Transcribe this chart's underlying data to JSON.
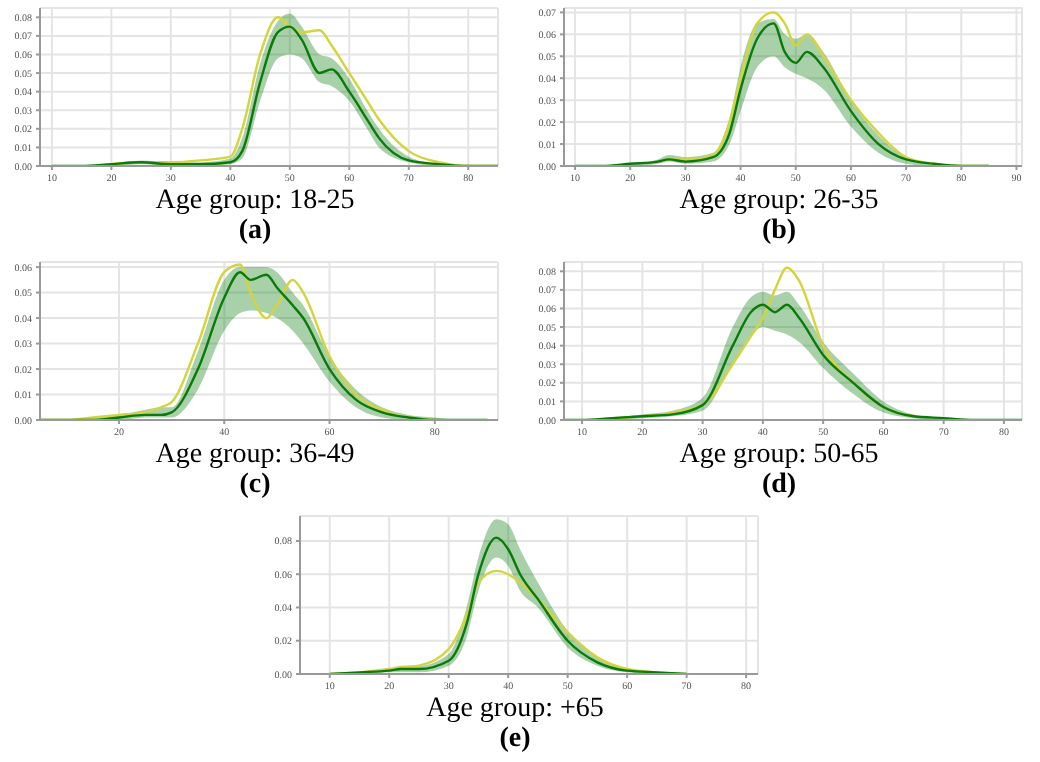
{
  "chart_data": [
    {
      "type": "line",
      "xlabel": "Age group: 18-25",
      "subtitle": "(a)",
      "grid": true,
      "legend": false,
      "marker": "none",
      "line_style": "solid",
      "xlim": [
        8,
        85
      ],
      "xticks": [
        10,
        20,
        30,
        40,
        50,
        60,
        70,
        80
      ],
      "ylim": [
        0,
        0.085
      ],
      "yticks": [
        {
          "value": 0,
          "label": "0.00"
        },
        {
          "value": 0.01,
          "label": "0.01"
        },
        {
          "value": 0.02,
          "label": "0.02"
        },
        {
          "value": 0.03,
          "label": "0.03"
        },
        {
          "value": 0.04,
          "label": "0.04"
        },
        {
          "value": 0.05,
          "label": "0.05"
        },
        {
          "value": 0.06,
          "label": "0.06"
        },
        {
          "value": 0.07,
          "label": "0.07"
        },
        {
          "value": 0.08,
          "label": "0.08"
        }
      ],
      "x": [
        10,
        15,
        20,
        25,
        30,
        35,
        40,
        42,
        45,
        48,
        50,
        52,
        55,
        57,
        60,
        63,
        65,
        70,
        75,
        80,
        85
      ],
      "series": [
        {
          "color": "#d4d43c",
          "values": [
            null,
            null,
            0.001,
            0.002,
            0.002,
            0.003,
            0.005,
            0.02,
            0.06,
            0.08,
            0.075,
            0.072,
            0.073,
            0.065,
            0.05,
            0.035,
            0.025,
            0.008,
            0.002,
            0,
            0
          ]
        },
        {
          "color": "#0a7a0a",
          "values": [
            0,
            0,
            0.001,
            0.002,
            0.001,
            0.001,
            0.002,
            0.008,
            0.045,
            0.072,
            0.075,
            0.068,
            0.05,
            0.052,
            0.04,
            0.025,
            0.015,
            0.003,
            0.001,
            0,
            0
          ],
          "lower": [
            0,
            0,
            0,
            0.001,
            0,
            0,
            0.001,
            0.004,
            0.035,
            0.058,
            0.06,
            0.058,
            0.045,
            0.043,
            0.035,
            0.02,
            0.01,
            0.002,
            0,
            0,
            0
          ],
          "upper": [
            0,
            0,
            0.001,
            0.003,
            0.002,
            0.002,
            0.004,
            0.015,
            0.055,
            0.078,
            0.082,
            0.075,
            0.06,
            0.058,
            0.047,
            0.03,
            0.02,
            0.005,
            0.001,
            0,
            0
          ]
        }
      ]
    },
    {
      "type": "line",
      "xlabel": "Age group: 26-35",
      "subtitle": "(b)",
      "grid": true,
      "legend": false,
      "marker": "none",
      "line_style": "solid",
      "xlim": [
        8,
        91
      ],
      "xticks": [
        10,
        20,
        30,
        40,
        50,
        60,
        70,
        80,
        90
      ],
      "ylim": [
        0,
        0.072
      ],
      "yticks": [
        {
          "value": 0,
          "label": "0.00"
        },
        {
          "value": 0.01,
          "label": "0.01"
        },
        {
          "value": 0.02,
          "label": "0.02"
        },
        {
          "value": 0.03,
          "label": "0.03"
        },
        {
          "value": 0.04,
          "label": "0.04"
        },
        {
          "value": 0.05,
          "label": "0.05"
        },
        {
          "value": 0.06,
          "label": "0.06"
        },
        {
          "value": 0.07,
          "label": "0.07"
        }
      ],
      "x": [
        10,
        15,
        20,
        25,
        27,
        30,
        35,
        38,
        40,
        43,
        46,
        48,
        50,
        52,
        55,
        60,
        65,
        70,
        75,
        80,
        85
      ],
      "series": [
        {
          "color": "#d4d43c",
          "values": [
            null,
            null,
            null,
            0.002,
            0.003,
            0.003,
            0.005,
            0.02,
            0.04,
            0.065,
            0.07,
            0.065,
            0.055,
            0.06,
            0.05,
            0.03,
            0.015,
            0.004,
            0.001,
            0,
            0
          ]
        },
        {
          "color": "#0a7a0a",
          "values": [
            0,
            0,
            0.001,
            0.002,
            0.003,
            0.002,
            0.004,
            0.015,
            0.035,
            0.058,
            0.065,
            0.052,
            0.047,
            0.052,
            0.045,
            0.025,
            0.01,
            0.003,
            0.001,
            0,
            0
          ],
          "lower": [
            0,
            0,
            0,
            0.001,
            0.002,
            0.001,
            0.002,
            0.01,
            0.025,
            0.045,
            0.05,
            0.045,
            0.042,
            0.04,
            0.035,
            0.018,
            0.006,
            0.001,
            0,
            0,
            0
          ],
          "upper": [
            0,
            0,
            0.001,
            0.003,
            0.005,
            0.004,
            0.006,
            0.022,
            0.045,
            0.065,
            0.067,
            0.06,
            0.058,
            0.06,
            0.052,
            0.03,
            0.014,
            0.004,
            0.001,
            0,
            0
          ]
        }
      ]
    },
    {
      "type": "line",
      "xlabel": "Age group: 36-49",
      "subtitle": "(c)",
      "grid": true,
      "legend": false,
      "marker": "none",
      "line_style": "solid",
      "xlim": [
        5,
        92
      ],
      "xticks": [
        20,
        40,
        60,
        80
      ],
      "ylim": [
        0,
        0.062
      ],
      "yticks": [
        {
          "value": 0,
          "label": "0.00"
        },
        {
          "value": 0.01,
          "label": "0.01"
        },
        {
          "value": 0.02,
          "label": "0.02"
        },
        {
          "value": 0.03,
          "label": "0.03"
        },
        {
          "value": 0.04,
          "label": "0.04"
        },
        {
          "value": 0.05,
          "label": "0.05"
        },
        {
          "value": 0.06,
          "label": "0.06"
        }
      ],
      "x": [
        5,
        10,
        15,
        20,
        25,
        28,
        30,
        35,
        40,
        43,
        45,
        48,
        50,
        53,
        55,
        60,
        65,
        70,
        75,
        80,
        85,
        90
      ],
      "series": [
        {
          "color": "#d4d43c",
          "values": [
            0,
            0,
            0.001,
            0.002,
            0.003,
            0.005,
            0.007,
            0.03,
            0.058,
            0.061,
            0.05,
            0.04,
            0.045,
            0.055,
            0.05,
            0.025,
            0.01,
            0.004,
            0.001,
            0,
            null,
            null
          ]
        },
        {
          "color": "#0a7a0a",
          "values": [
            0,
            0,
            0,
            0.001,
            0.002,
            0.002,
            0.003,
            0.02,
            0.048,
            0.058,
            0.055,
            0.057,
            0.052,
            0.045,
            0.04,
            0.02,
            0.008,
            0.003,
            0.001,
            0,
            0,
            0
          ],
          "lower": [
            0,
            0,
            0,
            0,
            0.001,
            0.001,
            0.001,
            0.012,
            0.035,
            0.042,
            0.043,
            0.042,
            0.04,
            0.035,
            0.03,
            0.015,
            0.005,
            0.001,
            0,
            0,
            0,
            0
          ],
          "upper": [
            0,
            0,
            0.001,
            0.002,
            0.004,
            0.005,
            0.005,
            0.027,
            0.055,
            0.06,
            0.06,
            0.06,
            0.058,
            0.05,
            0.045,
            0.025,
            0.012,
            0.005,
            0.002,
            0.001,
            0,
            0
          ]
        }
      ]
    },
    {
      "type": "line",
      "xlabel": "Age group: 50-65",
      "subtitle": "(d)",
      "grid": true,
      "legend": false,
      "marker": "none",
      "line_style": "solid",
      "xlim": [
        7,
        83
      ],
      "xticks": [
        10,
        20,
        30,
        40,
        50,
        60,
        70,
        80
      ],
      "ylim": [
        0,
        0.085
      ],
      "yticks": [
        {
          "value": 0,
          "label": "0.00"
        },
        {
          "value": 0.01,
          "label": "0.01"
        },
        {
          "value": 0.02,
          "label": "0.02"
        },
        {
          "value": 0.03,
          "label": "0.03"
        },
        {
          "value": 0.04,
          "label": "0.04"
        },
        {
          "value": 0.05,
          "label": "0.05"
        },
        {
          "value": 0.06,
          "label": "0.06"
        },
        {
          "value": 0.07,
          "label": "0.07"
        },
        {
          "value": 0.08,
          "label": "0.08"
        }
      ],
      "x": [
        7,
        10,
        15,
        20,
        25,
        30,
        35,
        38,
        40,
        42,
        44,
        46,
        50,
        55,
        60,
        65,
        70,
        75,
        80,
        83
      ],
      "series": [
        {
          "color": "#d4d43c",
          "values": [
            null,
            null,
            0.001,
            0.002,
            0.004,
            0.008,
            0.03,
            0.045,
            0.055,
            0.07,
            0.082,
            0.075,
            0.04,
            0.02,
            0.007,
            0.002,
            null,
            null,
            null,
            null
          ]
        },
        {
          "color": "#0a7a0a",
          "values": [
            0,
            0,
            0.001,
            0.002,
            0.003,
            0.008,
            0.04,
            0.058,
            0.062,
            0.058,
            0.062,
            0.055,
            0.035,
            0.02,
            0.007,
            0.002,
            0.001,
            0,
            0,
            0
          ],
          "lower": [
            0,
            0,
            0,
            0.001,
            0.002,
            0.005,
            0.03,
            0.045,
            0.05,
            0.048,
            0.046,
            0.042,
            0.028,
            0.014,
            0.004,
            0.001,
            0,
            0,
            0,
            0
          ],
          "upper": [
            0,
            0,
            0.001,
            0.003,
            0.005,
            0.012,
            0.05,
            0.066,
            0.069,
            0.067,
            0.069,
            0.062,
            0.042,
            0.025,
            0.01,
            0.003,
            0.001,
            0,
            0,
            0
          ]
        }
      ]
    },
    {
      "type": "line",
      "xlabel": "Age group: +65",
      "subtitle": "(e)",
      "grid": true,
      "legend": false,
      "marker": "none",
      "line_style": "solid",
      "xlim": [
        5,
        82
      ],
      "xticks": [
        10,
        20,
        30,
        40,
        50,
        60,
        70,
        80
      ],
      "ylim": [
        0,
        0.095
      ],
      "yticks": [
        {
          "value": 0,
          "label": "0.00"
        },
        {
          "value": 0.02,
          "label": "0.02"
        },
        {
          "value": 0.04,
          "label": "0.04"
        },
        {
          "value": 0.06,
          "label": "0.06"
        },
        {
          "value": 0.08,
          "label": "0.08"
        }
      ],
      "x": [
        5,
        10,
        15,
        20,
        22,
        25,
        30,
        33,
        35,
        38,
        40,
        42,
        45,
        50,
        55,
        60,
        65,
        70,
        75,
        80
      ],
      "series": [
        {
          "color": "#d4d43c",
          "values": [
            null,
            0,
            0.001,
            0.003,
            0.004,
            0.005,
            0.015,
            0.035,
            0.055,
            0.062,
            0.06,
            0.055,
            0.045,
            0.025,
            0.01,
            0.003,
            0.001,
            0,
            null,
            null
          ]
        },
        {
          "color": "#0a7a0a",
          "values": [
            null,
            0,
            0.001,
            0.002,
            0.003,
            0.003,
            0.008,
            0.03,
            0.06,
            0.082,
            0.075,
            0.06,
            0.045,
            0.02,
            0.007,
            0.002,
            0.001,
            0,
            null,
            null
          ],
          "lower": [
            0,
            0,
            0,
            0.001,
            0.001,
            0.001,
            0.005,
            0.022,
            0.05,
            0.07,
            0.065,
            0.05,
            0.04,
            0.016,
            0.005,
            0.001,
            0,
            0,
            0,
            0
          ],
          "upper": [
            0,
            0,
            0.001,
            0.003,
            0.005,
            0.005,
            0.012,
            0.04,
            0.07,
            0.093,
            0.09,
            0.075,
            0.055,
            0.026,
            0.01,
            0.003,
            0.001,
            0,
            0,
            0
          ]
        }
      ]
    }
  ]
}
